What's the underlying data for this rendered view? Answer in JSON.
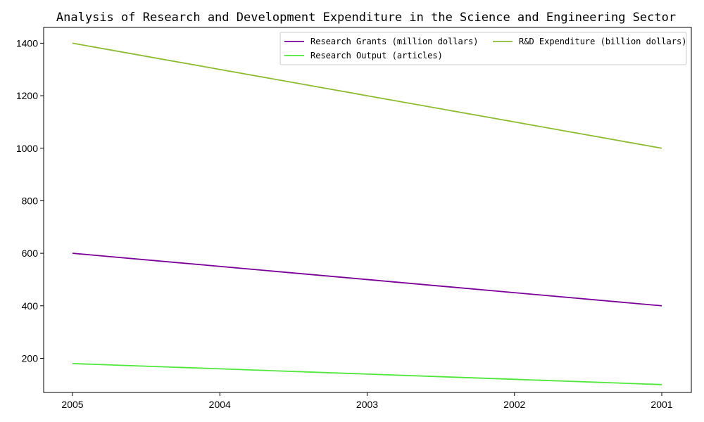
{
  "chart_data": {
    "type": "line",
    "title": "Analysis of Research and Development Expenditure in the Science and Engineering Sector",
    "xlabel": "",
    "ylabel": "",
    "x": [
      "2005",
      "2004",
      "2003",
      "2002",
      "2001"
    ],
    "ylim": [
      70,
      1460
    ],
    "yticks": [
      200,
      400,
      600,
      800,
      1000,
      1200,
      1400
    ],
    "grid": false,
    "legend_position": "top-right",
    "series": [
      {
        "name": "Research Grants (million dollars)",
        "color": "#7b0099",
        "values": [
          600,
          550,
          500,
          450,
          400
        ]
      },
      {
        "name": "Research Output (articles)",
        "color": "#4fe83a",
        "values": [
          180,
          160,
          140,
          120,
          100
        ]
      },
      {
        "name": "R&D Expenditure (billion dollars)",
        "color": "#8dbc32",
        "values": [
          1400,
          1300,
          1200,
          1100,
          1000
        ]
      }
    ]
  }
}
